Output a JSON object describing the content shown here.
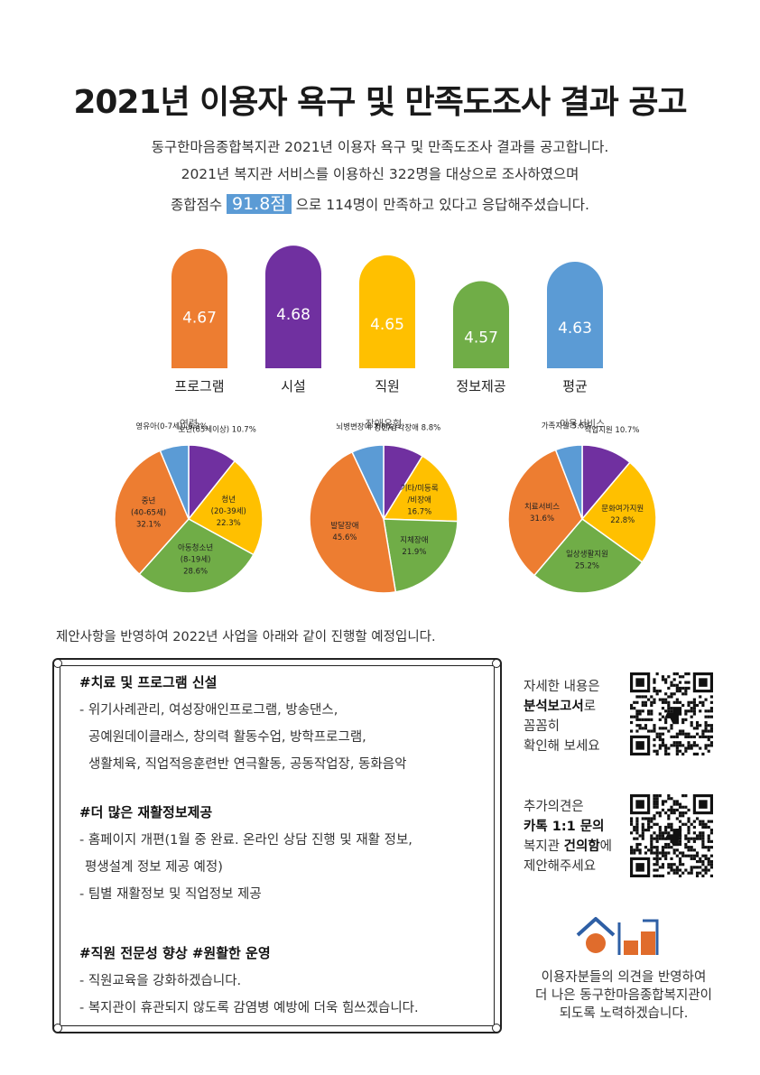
{
  "title": "2021년 이용자 욕구 및 만족도조사 결과 공고",
  "intro": {
    "line1": "동구한마음종합복지관 2021년 이용자 욕구 및 만족도조사 결과를 공고합니다.",
    "line2": "2021년 복지관 서비스를 이용하신 322명을 대상으로 조사하였으며",
    "line3_pre": "종합점수",
    "score": "91.8점",
    "line3_post": "으로 114명이 만족하고 있다고 응답해주셨습니다."
  },
  "chart_data": [
    {
      "type": "bar",
      "categories": [
        "프로그램",
        "시설",
        "직원",
        "정보제공",
        "평균"
      ],
      "values": [
        4.67,
        4.68,
        4.65,
        4.57,
        4.63
      ],
      "colors": [
        "#ed7d31",
        "#7030a0",
        "#ffc000",
        "#70ad47",
        "#5b9bd5"
      ],
      "ylim": [
        4.3,
        4.7
      ]
    },
    {
      "type": "pie",
      "title": "연령",
      "slices": [
        {
          "label": "노년(65세이상)",
          "value": 10.7,
          "value_label": "10.7%",
          "color": "#7030a0"
        },
        {
          "label": "청년 (20-39세)",
          "value": 22.3,
          "value_label": "22.3%",
          "color": "#ffc000"
        },
        {
          "label": "아동청소년 (8-19세)",
          "value": 28.6,
          "value_label": "28.6%",
          "color": "#70ad47"
        },
        {
          "label": "중년 (40-65세)",
          "value": 32.1,
          "value_label": "32.1%",
          "color": "#ed7d31"
        },
        {
          "label": "영유아(0-7세))",
          "value": 6.3,
          "value_label": "6.3%",
          "color": "#5b9bd5"
        }
      ]
    },
    {
      "type": "pie",
      "title": "장애유형",
      "slices": [
        {
          "label": "정신/감각장애",
          "value": 8.8,
          "value_label": "8.8%",
          "color": "#7030a0"
        },
        {
          "label": "기타/미등록 /비장애",
          "value": 16.7,
          "value_label": "16.7%",
          "color": "#ffc000"
        },
        {
          "label": "지체장애",
          "value": 21.9,
          "value_label": "21.9%",
          "color": "#70ad47"
        },
        {
          "label": "발달장애",
          "value": 45.6,
          "value_label": "45.6%",
          "color": "#ed7d31"
        },
        {
          "label": "뇌병변장애",
          "value": 7.0,
          "value_label": "7.0%",
          "color": "#5b9bd5"
        }
      ]
    },
    {
      "type": "pie",
      "title": "이용서비스",
      "slices": [
        {
          "label": "직업지원",
          "value": 10.7,
          "value_label": "10.7%",
          "color": "#7030a0"
        },
        {
          "label": "문화여가지원",
          "value": 22.8,
          "value_label": "22.8%",
          "color": "#ffc000"
        },
        {
          "label": "일상생활지원",
          "value": 25.2,
          "value_label": "25.2%",
          "color": "#70ad47"
        },
        {
          "label": "치료서비스",
          "value": 31.6,
          "value_label": "31.6%",
          "color": "#ed7d31"
        },
        {
          "label": "가족지원",
          "value": 5.6,
          "value_label": "5.6%",
          "color": "#5b9bd5"
        }
      ]
    }
  ],
  "plan": {
    "intro": "제안사항을 반영하여 2022년 사업을 아래와 같이 진행할 예정입니다.",
    "sections": [
      {
        "heading": "#치료 및 프로그램 신설",
        "lines": [
          "- 위기사례관리, 여성장애인프로그램, 방송댄스,",
          "공예원데이클래스, 창의력 활동수업, 방학프로그램,",
          "생활체육, 직업적응훈련반 연극활동, 공동작업장, 동화음악"
        ]
      },
      {
        "heading": "#더 많은 재활정보제공",
        "lines": [
          "- 홈페이지 개편(1월 중 완료. 온라인 상담 진행 및 재활 정보,",
          "평생설계 정보 제공 예정)",
          "- 팀별 재활정보 및 직업정보 제공"
        ]
      },
      {
        "heading": "#직원 전문성 향상 #원활한 운영",
        "lines": [
          "- 직원교육을 강화하겠습니다.",
          "- 복지관이 휴관되지 않도록 감염병 예방에 더욱 힘쓰겠습니다."
        ]
      }
    ]
  },
  "side": {
    "qr1": {
      "l1": "자세한 내용은",
      "l2_bold": "분석보고서",
      "l2_rest": "로",
      "l3": "꼼꼼히",
      "l4": "확인해 보세요"
    },
    "qr2": {
      "l1": "추가의견은",
      "l2_bold": "카톡 1:1 문의",
      "l3_pre": "복지관 ",
      "l3_bold": "건의함",
      "l3_post": "에",
      "l4": "제안해주세요"
    },
    "icons": [
      "qr-code-icon",
      "house-logo-icon"
    ],
    "footer": [
      "이용자분들의 의견을 반영하여",
      "더 나은 동구한마음종합복지관이",
      "되도록 노력하겠습니다."
    ]
  }
}
